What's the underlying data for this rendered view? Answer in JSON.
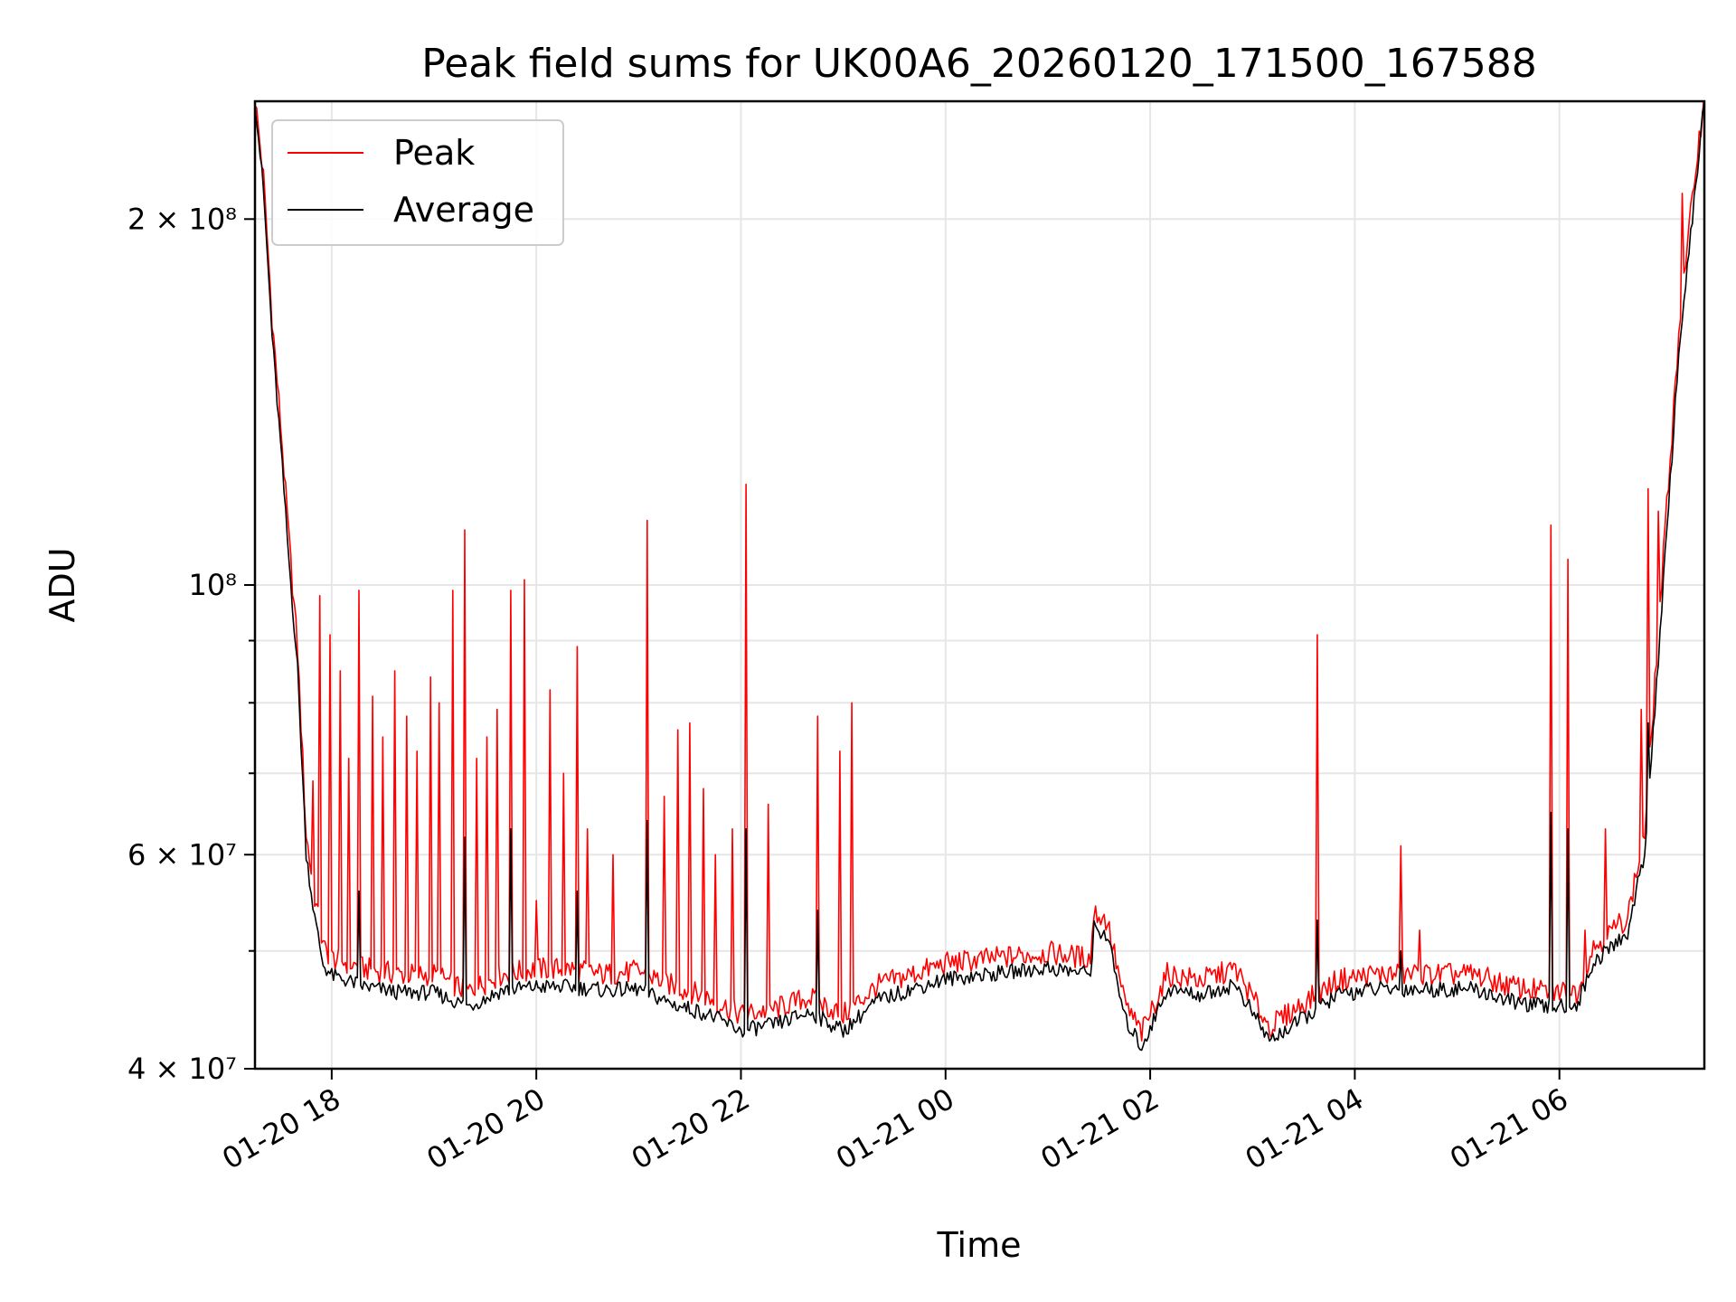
{
  "chart_data": {
    "type": "line",
    "title": "Peak field sums for UK00A6_20260120_171500_167588",
    "xlabel": "Time",
    "ylabel": "ADU",
    "y_scale": "log",
    "ylim": [
      40000000,
      250000000
    ],
    "xlim": [
      "2026-01-20 17:15",
      "2026-01-21 07:25"
    ],
    "grid": true,
    "legend_position": "upper-left",
    "x_ticks": [
      {
        "t": "2026-01-20 18:00",
        "label": "01-20 18"
      },
      {
        "t": "2026-01-20 20:00",
        "label": "01-20 20"
      },
      {
        "t": "2026-01-20 22:00",
        "label": "01-20 22"
      },
      {
        "t": "2026-01-21 00:00",
        "label": "01-21 00"
      },
      {
        "t": "2026-01-21 02:00",
        "label": "01-21 02"
      },
      {
        "t": "2026-01-21 04:00",
        "label": "01-21 04"
      },
      {
        "t": "2026-01-21 06:00",
        "label": "01-21 06"
      }
    ],
    "y_major_ticks": [
      {
        "v": 40000000,
        "label": "4 × 10⁷"
      },
      {
        "v": 60000000,
        "label": "6 × 10⁷"
      },
      {
        "v": 100000000,
        "label": "10⁸"
      },
      {
        "v": 200000000,
        "label": "2 × 10⁸"
      }
    ],
    "y_minor_ticks": [
      50000000,
      70000000,
      80000000,
      90000000
    ],
    "series": [
      {
        "name": "Peak",
        "color": "#ff0000",
        "baseline": [
          [
            "2026-01-20 17:15",
            250000000
          ],
          [
            "2026-01-20 17:20",
            215000000
          ],
          [
            "2026-01-20 17:25",
            165000000
          ],
          [
            "2026-01-20 17:30",
            135000000
          ],
          [
            "2026-01-20 17:35",
            108000000
          ],
          [
            "2026-01-20 17:40",
            88000000
          ],
          [
            "2026-01-20 17:45",
            62000000
          ],
          [
            "2026-01-20 17:50",
            55000000
          ],
          [
            "2026-01-20 17:55",
            50000000
          ],
          [
            "2026-01-20 18:00",
            49000000
          ],
          [
            "2026-01-20 18:20",
            48000000
          ],
          [
            "2026-01-20 18:40",
            47500000
          ],
          [
            "2026-01-20 19:00",
            47500000
          ],
          [
            "2026-01-20 19:20",
            46000000
          ],
          [
            "2026-01-20 19:40",
            47500000
          ],
          [
            "2026-01-20 20:00",
            48000000
          ],
          [
            "2026-01-20 20:20",
            48000000
          ],
          [
            "2026-01-20 20:40",
            47500000
          ],
          [
            "2026-01-20 21:00",
            47800000
          ],
          [
            "2026-01-20 21:20",
            46500000
          ],
          [
            "2026-01-20 21:40",
            45500000
          ],
          [
            "2026-01-20 22:00",
            44000000
          ],
          [
            "2026-01-20 22:20",
            44500000
          ],
          [
            "2026-01-20 22:40",
            45500000
          ],
          [
            "2026-01-20 23:00",
            44000000
          ],
          [
            "2026-01-20 23:20",
            46500000
          ],
          [
            "2026-01-20 23:40",
            47500000
          ],
          [
            "2026-01-21 00:00",
            48500000
          ],
          [
            "2026-01-21 00:30",
            49000000
          ],
          [
            "2026-01-21 01:00",
            49500000
          ],
          [
            "2026-01-21 01:25",
            49000000
          ],
          [
            "2026-01-21 01:27",
            53500000
          ],
          [
            "2026-01-21 01:35",
            52500000
          ],
          [
            "2026-01-21 01:45",
            45000000
          ],
          [
            "2026-01-21 01:55",
            42500000
          ],
          [
            "2026-01-21 02:10",
            47500000
          ],
          [
            "2026-01-21 02:30",
            47000000
          ],
          [
            "2026-01-21 02:50",
            48000000
          ],
          [
            "2026-01-21 03:10",
            43000000
          ],
          [
            "2026-01-21 03:30",
            45000000
          ],
          [
            "2026-01-21 03:50",
            47000000
          ],
          [
            "2026-01-21 04:10",
            47500000
          ],
          [
            "2026-01-21 04:30",
            47500000
          ],
          [
            "2026-01-21 04:50",
            47500000
          ],
          [
            "2026-01-21 05:10",
            47500000
          ],
          [
            "2026-01-21 05:30",
            46500000
          ],
          [
            "2026-01-21 05:50",
            46000000
          ],
          [
            "2026-01-21 06:10",
            46000000
          ],
          [
            "2026-01-21 06:20",
            50000000
          ],
          [
            "2026-01-21 06:40",
            53000000
          ],
          [
            "2026-01-21 06:50",
            62000000
          ],
          [
            "2026-01-21 07:00",
            100000000
          ],
          [
            "2026-01-21 07:10",
            160000000
          ],
          [
            "2026-01-21 07:20",
            220000000
          ],
          [
            "2026-01-21 07:25",
            250000000
          ]
        ],
        "spikes": [
          [
            "2026-01-20 17:49",
            69000000
          ],
          [
            "2026-01-20 17:53",
            98000000
          ],
          [
            "2026-01-20 17:59",
            91000000
          ],
          [
            "2026-01-20 18:05",
            85000000
          ],
          [
            "2026-01-20 18:10",
            72000000
          ],
          [
            "2026-01-20 18:16",
            99000000
          ],
          [
            "2026-01-20 18:24",
            81000000
          ],
          [
            "2026-01-20 18:30",
            75000000
          ],
          [
            "2026-01-20 18:37",
            85000000
          ],
          [
            "2026-01-20 18:44",
            78000000
          ],
          [
            "2026-01-20 18:50",
            73000000
          ],
          [
            "2026-01-20 18:58",
            84000000
          ],
          [
            "2026-01-20 19:03",
            80000000
          ],
          [
            "2026-01-20 19:11",
            99000000
          ],
          [
            "2026-01-20 19:18",
            111000000
          ],
          [
            "2026-01-20 19:25",
            72000000
          ],
          [
            "2026-01-20 19:31",
            75000000
          ],
          [
            "2026-01-20 19:37",
            79000000
          ],
          [
            "2026-01-20 19:45",
            99000000
          ],
          [
            "2026-01-20 19:53",
            101000000
          ],
          [
            "2026-01-20 20:00",
            55000000
          ],
          [
            "2026-01-20 20:08",
            82000000
          ],
          [
            "2026-01-20 20:16",
            70000000
          ],
          [
            "2026-01-20 20:24",
            89000000
          ],
          [
            "2026-01-20 20:30",
            63000000
          ],
          [
            "2026-01-20 20:45",
            60000000
          ],
          [
            "2026-01-20 21:05",
            113000000
          ],
          [
            "2026-01-20 21:15",
            67000000
          ],
          [
            "2026-01-20 21:23",
            76000000
          ],
          [
            "2026-01-20 21:30",
            77000000
          ],
          [
            "2026-01-20 21:38",
            68000000
          ],
          [
            "2026-01-20 21:45",
            60000000
          ],
          [
            "2026-01-20 21:55",
            63000000
          ],
          [
            "2026-01-20 22:03",
            121000000
          ],
          [
            "2026-01-20 22:16",
            66000000
          ],
          [
            "2026-01-20 22:45",
            78000000
          ],
          [
            "2026-01-20 22:58",
            73000000
          ],
          [
            "2026-01-20 23:05",
            80000000
          ],
          [
            "2026-01-21 03:38",
            91000000
          ],
          [
            "2026-01-21 04:27",
            61000000
          ],
          [
            "2026-01-21 04:38",
            52000000
          ],
          [
            "2026-01-21 05:55",
            112000000
          ],
          [
            "2026-01-21 06:05",
            105000000
          ],
          [
            "2026-01-21 06:15",
            52000000
          ],
          [
            "2026-01-21 06:27",
            63000000
          ],
          [
            "2026-01-21 06:48",
            79000000
          ],
          [
            "2026-01-21 06:52",
            120000000
          ],
          [
            "2026-01-21 06:58",
            115000000
          ],
          [
            "2026-01-21 07:05",
            127000000
          ],
          [
            "2026-01-21 07:12",
            210000000
          ]
        ]
      },
      {
        "name": "Average",
        "color": "#000000",
        "baseline": [
          [
            "2026-01-20 17:15",
            250000000
          ],
          [
            "2026-01-20 17:20",
            210000000
          ],
          [
            "2026-01-20 17:25",
            160000000
          ],
          [
            "2026-01-20 17:30",
            130000000
          ],
          [
            "2026-01-20 17:35",
            104000000
          ],
          [
            "2026-01-20 17:40",
            85000000
          ],
          [
            "2026-01-20 17:45",
            60000000
          ],
          [
            "2026-01-20 17:50",
            53000000
          ],
          [
            "2026-01-20 17:55",
            48500000
          ],
          [
            "2026-01-20 18:00",
            47500000
          ],
          [
            "2026-01-20 18:20",
            46500000
          ],
          [
            "2026-01-20 18:40",
            46000000
          ],
          [
            "2026-01-20 19:00",
            46000000
          ],
          [
            "2026-01-20 19:20",
            44800000
          ],
          [
            "2026-01-20 19:40",
            46200000
          ],
          [
            "2026-01-20 20:00",
            46500000
          ],
          [
            "2026-01-20 20:20",
            46500000
          ],
          [
            "2026-01-20 20:40",
            46200000
          ],
          [
            "2026-01-20 21:00",
            46300000
          ],
          [
            "2026-01-20 21:20",
            45000000
          ],
          [
            "2026-01-20 21:40",
            44200000
          ],
          [
            "2026-01-20 22:00",
            42800000
          ],
          [
            "2026-01-20 22:20",
            43300000
          ],
          [
            "2026-01-20 22:40",
            44300000
          ],
          [
            "2026-01-20 23:00",
            42800000
          ],
          [
            "2026-01-20 23:20",
            45300000
          ],
          [
            "2026-01-20 23:40",
            46300000
          ],
          [
            "2026-01-21 00:00",
            47200000
          ],
          [
            "2026-01-21 00:30",
            47700000
          ],
          [
            "2026-01-21 01:00",
            48200000
          ],
          [
            "2026-01-21 01:25",
            47700000
          ],
          [
            "2026-01-21 01:27",
            52000000
          ],
          [
            "2026-01-21 01:35",
            51200000
          ],
          [
            "2026-01-21 01:45",
            43800000
          ],
          [
            "2026-01-21 01:55",
            41500000
          ],
          [
            "2026-01-21 02:10",
            46300000
          ],
          [
            "2026-01-21 02:30",
            45800000
          ],
          [
            "2026-01-21 02:50",
            46700000
          ],
          [
            "2026-01-21 03:10",
            42000000
          ],
          [
            "2026-01-21 03:30",
            43800000
          ],
          [
            "2026-01-21 03:50",
            45800000
          ],
          [
            "2026-01-21 04:10",
            46300000
          ],
          [
            "2026-01-21 04:30",
            46300000
          ],
          [
            "2026-01-21 04:50",
            46300000
          ],
          [
            "2026-01-21 05:10",
            46300000
          ],
          [
            "2026-01-21 05:30",
            45300000
          ],
          [
            "2026-01-21 05:50",
            44800000
          ],
          [
            "2026-01-21 06:10",
            44800000
          ],
          [
            "2026-01-21 06:20",
            48700000
          ],
          [
            "2026-01-21 06:40",
            51500000
          ],
          [
            "2026-01-21 06:50",
            60000000
          ],
          [
            "2026-01-21 07:00",
            95000000
          ],
          [
            "2026-01-21 07:10",
            155000000
          ],
          [
            "2026-01-21 07:20",
            212000000
          ],
          [
            "2026-01-21 07:25",
            250000000
          ]
        ],
        "spikes": [
          [
            "2026-01-20 18:16",
            56000000
          ],
          [
            "2026-01-20 19:18",
            62000000
          ],
          [
            "2026-01-20 19:45",
            63000000
          ],
          [
            "2026-01-20 20:24",
            56000000
          ],
          [
            "2026-01-20 21:05",
            64000000
          ],
          [
            "2026-01-20 22:03",
            63000000
          ],
          [
            "2026-01-20 22:45",
            54000000
          ],
          [
            "2026-01-21 03:38",
            53000000
          ],
          [
            "2026-01-21 04:27",
            50000000
          ],
          [
            "2026-01-21 05:55",
            65000000
          ],
          [
            "2026-01-21 06:05",
            63000000
          ],
          [
            "2026-01-21 06:52",
            77000000
          ]
        ]
      }
    ]
  }
}
